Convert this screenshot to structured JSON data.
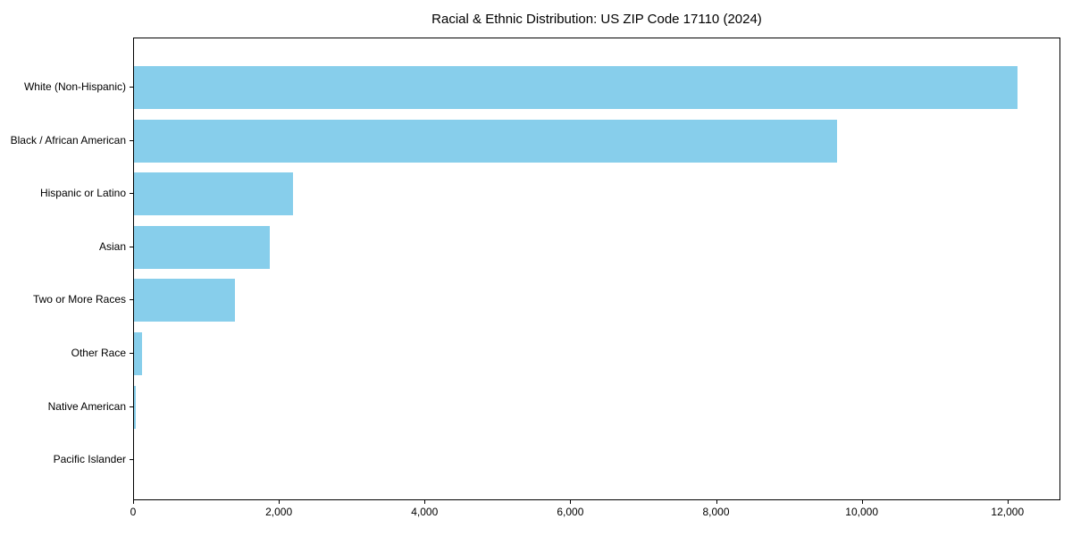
{
  "colors": {
    "bar": "#87CEEB",
    "axis": "#000000",
    "background": "#FFFFFF"
  },
  "chart_data": {
    "type": "bar",
    "orientation": "horizontal",
    "title": "Racial & Ethnic Distribution: US ZIP Code 17110 (2024)",
    "categories": [
      "White (Non-Hispanic)",
      "Black / African American",
      "Hispanic or Latino",
      "Asian",
      "Two or More Races",
      "Other Race",
      "Native American",
      "Pacific Islander"
    ],
    "values": [
      12120,
      9650,
      2180,
      1860,
      1390,
      115,
      30,
      0
    ],
    "xlabel": "",
    "ylabel": "",
    "xlim": [
      0,
      12726
    ],
    "xticks": [
      0,
      2000,
      4000,
      6000,
      8000,
      10000,
      12000
    ],
    "xtick_labels": [
      "0",
      "2,000",
      "4,000",
      "6,000",
      "8,000",
      "10,000",
      "12,000"
    ],
    "bar_color": "#87CEEB",
    "grid": false,
    "legend": null
  }
}
